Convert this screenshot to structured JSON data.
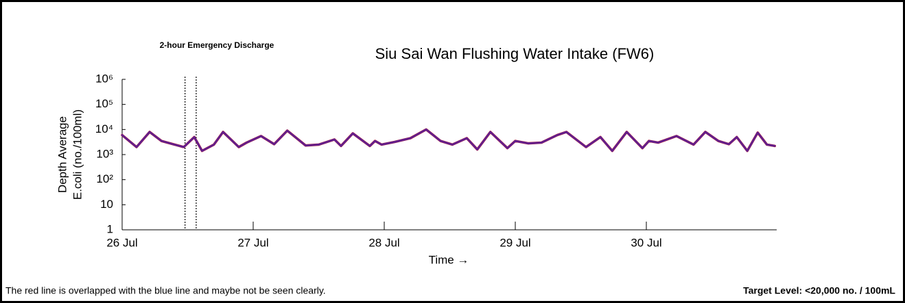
{
  "chart_data": {
    "type": "line",
    "title": "Siu Sai Wan Flushing Water Intake (FW6)",
    "annotation": "2-hour Emergency Discharge",
    "discharge_window": [
      0.48,
      0.565
    ],
    "ylabel": [
      "Depth Average",
      "E.coli (no./100ml)"
    ],
    "xlabel": "Time →",
    "note": "The red line is overlapped with the blue line and maybe not be seen clearly.",
    "target": "Target Level: <20,000 no. / 100mL",
    "log_y": true,
    "xlim": [
      0,
      5
    ],
    "xticks": [
      {
        "value": 0,
        "label": "26 Jul"
      },
      {
        "value": 1,
        "label": "27 Jul"
      },
      {
        "value": 2,
        "label": "28 Jul"
      },
      {
        "value": 3,
        "label": "29 Jul"
      },
      {
        "value": 4,
        "label": "30 Jul"
      }
    ],
    "ylim": [
      1,
      1000000
    ],
    "yticks": [
      1,
      10,
      {
        "value": 100,
        "label": "10²"
      },
      {
        "value": 1000,
        "label": "10³"
      },
      {
        "value": 10000,
        "label": "10⁴"
      },
      {
        "value": 100000,
        "label": "10⁵"
      },
      {
        "value": 1000000,
        "label": "10⁶"
      }
    ],
    "x": [
      0.0,
      0.11,
      0.21,
      0.3,
      0.4,
      0.47,
      0.55,
      0.61,
      0.7,
      0.77,
      0.89,
      0.95,
      1.06,
      1.16,
      1.26,
      1.4,
      1.5,
      1.62,
      1.67,
      1.76,
      1.89,
      1.93,
      1.98,
      2.08,
      2.2,
      2.32,
      2.43,
      2.52,
      2.63,
      2.71,
      2.81,
      2.94,
      3.0,
      3.1,
      3.2,
      3.32,
      3.39,
      3.54,
      3.65,
      3.74,
      3.85,
      3.97,
      4.02,
      4.09,
      4.23,
      4.36,
      4.45,
      4.55,
      4.63,
      4.69,
      4.77,
      4.85,
      4.92,
      4.98
    ],
    "series": [
      {
        "color": "#d62020",
        "values": [
          6000,
          2000,
          8000,
          3500,
          2500,
          2000,
          5000,
          1400,
          2500,
          8000,
          2000,
          3000,
          5500,
          2600,
          9000,
          2300,
          2500,
          4000,
          2200,
          7000,
          2200,
          3500,
          2500,
          3200,
          4500,
          10000,
          3500,
          2500,
          4500,
          1600,
          8000,
          1800,
          3500,
          2800,
          3000,
          6000,
          8000,
          2000,
          5000,
          1400,
          8000,
          1800,
          3500,
          3000,
          5500,
          2500,
          8000,
          3500,
          2600,
          5000,
          1400,
          7500,
          2500,
          2200
        ]
      },
      {
        "color": "#3b1fb0",
        "values": [
          6000,
          2000,
          8000,
          3500,
          2500,
          2000,
          5000,
          1400,
          2500,
          8000,
          2000,
          3000,
          5500,
          2600,
          9000,
          2300,
          2500,
          4000,
          2200,
          7000,
          2200,
          3500,
          2500,
          3200,
          4500,
          10000,
          3500,
          2500,
          4500,
          1600,
          8000,
          1800,
          3500,
          2800,
          3000,
          6000,
          8000,
          2000,
          5000,
          1400,
          8000,
          1800,
          3500,
          3000,
          5500,
          2500,
          8000,
          3500,
          2600,
          5000,
          1400,
          7500,
          2500,
          2200
        ]
      }
    ]
  }
}
